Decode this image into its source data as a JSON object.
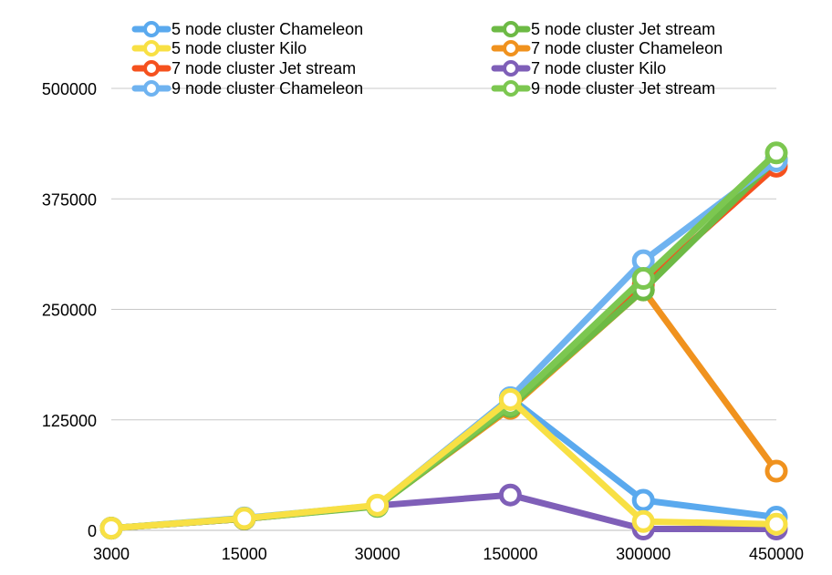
{
  "chart_data": {
    "type": "line",
    "title": "",
    "xlabel": "",
    "ylabel": "",
    "categories": [
      "3000",
      "15000",
      "30000",
      "150000",
      "300000",
      "450000"
    ],
    "ylim": [
      0,
      500000
    ],
    "yticks": [
      "0",
      "125000",
      "250000",
      "375000",
      "500000"
    ],
    "grid": true,
    "legend_position": "top",
    "series": [
      {
        "name": "5 node cluster Chameleon",
        "color": "#5aa9ee",
        "values": [
          2500,
          14000,
          28000,
          150000,
          34000,
          15000
        ]
      },
      {
        "name": "5 node cluster Jet stream",
        "color": "#6dba45",
        "values": [
          2500,
          13000,
          27000,
          140000,
          272000,
          420000
        ]
      },
      {
        "name": "5 node cluster Kilo",
        "color": "#f8e044",
        "values": [
          2500,
          13500,
          28500,
          148000,
          10000,
          7000
        ]
      },
      {
        "name": "7 node cluster Chameleon",
        "color": "#f0921e",
        "values": [
          2500,
          13000,
          27500,
          138000,
          272000,
          67000
        ]
      },
      {
        "name": "7 node cluster Jet stream",
        "color": "#f5511e",
        "values": [
          2500,
          13000,
          27500,
          140000,
          278000,
          412000
        ]
      },
      {
        "name": "7 node cluster Kilo",
        "color": "#7f5fb8",
        "values": [
          2500,
          13000,
          28000,
          40000,
          1500,
          1500
        ]
      },
      {
        "name": "9 node cluster Chameleon",
        "color": "#6fb3f0",
        "values": [
          2500,
          13500,
          28000,
          150000,
          305000,
          418000
        ]
      },
      {
        "name": "9 node cluster Jet stream",
        "color": "#7cc750",
        "values": [
          2500,
          13500,
          28000,
          142000,
          285000,
          427000
        ]
      }
    ],
    "draw_order": [
      5,
      3,
      0,
      4,
      1,
      6,
      7,
      2
    ]
  }
}
